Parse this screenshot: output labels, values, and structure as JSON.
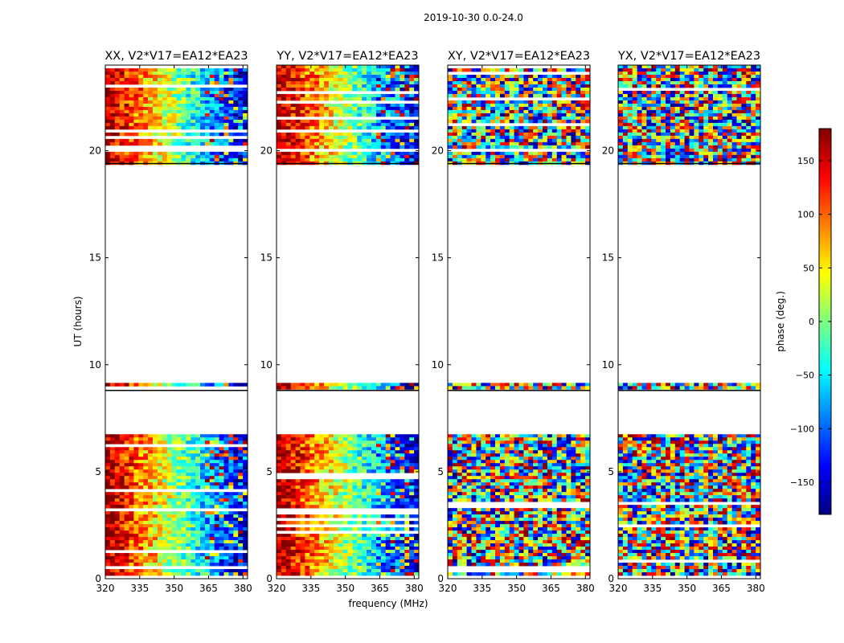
{
  "figure": {
    "suptitle": "2019-10-30 0.0-24.0",
    "xlabel": "frequency (MHz)",
    "ylabel": "UT (hours)"
  },
  "chart_data": {
    "type": "heatmap",
    "colormap": "jet",
    "x_range": [
      320,
      382
    ],
    "y_range": [
      0,
      24
    ],
    "xticks": [
      320,
      335,
      350,
      365,
      380
    ],
    "yticks": [
      0,
      5,
      10,
      15,
      20
    ],
    "color_range": [
      -180,
      180
    ],
    "colorbar_label": "phase (deg.)",
    "colorbar_ticks": [
      -150,
      -100,
      -50,
      0,
      50,
      100,
      150
    ],
    "data_gaps_ut": [
      [
        0.0,
        0.15
      ],
      [
        6.8,
        8.8
      ],
      [
        9.2,
        19.4
      ]
    ],
    "panels": [
      {
        "title": "XX, V2*V17=EA12*EA23",
        "polarization": "XX",
        "phase_trend": "coherent: ~+170 deg at 320 MHz decreasing to ~-150 deg at 382 MHz"
      },
      {
        "title": "YY, V2*V17=EA12*EA23",
        "polarization": "YY",
        "phase_trend": "coherent: ~+170 deg at 320 MHz decreasing to ~-170 deg at 382 MHz"
      },
      {
        "title": "XY, V2*V17=EA12*EA23",
        "polarization": "XY",
        "phase_trend": "noise-like, random phase"
      },
      {
        "title": "YX, V2*V17=EA12*EA23",
        "polarization": "YX",
        "phase_trend": "noise-like, random phase"
      }
    ],
    "colorbar_ticks_label": [
      "−150",
      "−100",
      "−50",
      "0",
      "50",
      "100",
      "150"
    ]
  }
}
